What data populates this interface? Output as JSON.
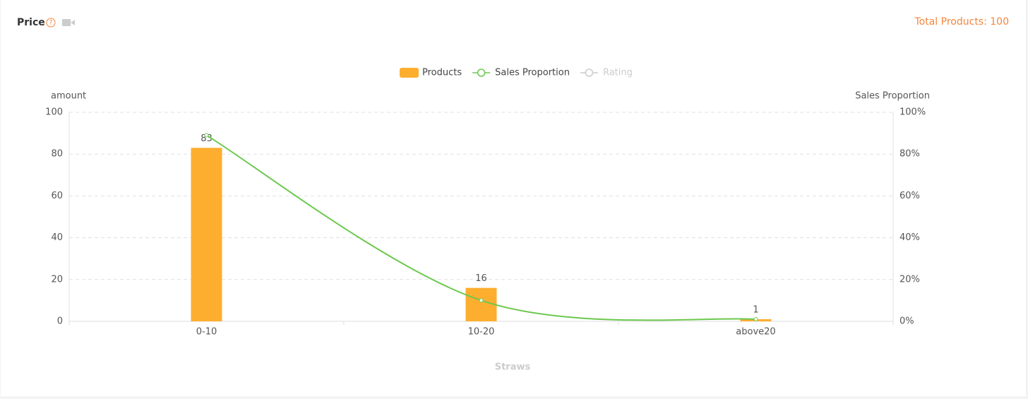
{
  "header": {
    "title": "Price",
    "total": "Total Products: 100"
  },
  "chart_data": {
    "type": "bar-line",
    "categories": [
      "0-10",
      "10-20",
      "above20"
    ],
    "y_axis_label": "amount",
    "y2_axis_label": "Sales Proportion",
    "x_axis_label": "Straws",
    "series": [
      {
        "name": "Products",
        "color": "#fdae2f",
        "type": "bar",
        "values": [
          83,
          16,
          1
        ]
      },
      {
        "name": "Sales Proportion",
        "color": "#6cc84e",
        "type": "line",
        "axis": "y2",
        "values": [
          89,
          10,
          1
        ]
      },
      {
        "name": "Rating",
        "color": "#cccccc",
        "type": "line",
        "visible": false,
        "values": [
          null,
          null,
          null
        ]
      }
    ],
    "ylim": [
      0,
      100
    ],
    "yticks": [
      0,
      20,
      40,
      60,
      80,
      100
    ],
    "y2lim": [
      0,
      100
    ],
    "y2ticks": [
      {
        "value": 0,
        "label": "0%"
      },
      {
        "value": 20,
        "label": "20%"
      },
      {
        "value": 40,
        "label": "40%"
      },
      {
        "value": 60,
        "label": "60%"
      },
      {
        "value": 80,
        "label": "80%"
      },
      {
        "value": 100,
        "label": "100%"
      }
    ],
    "grid": true,
    "legend": "top"
  }
}
